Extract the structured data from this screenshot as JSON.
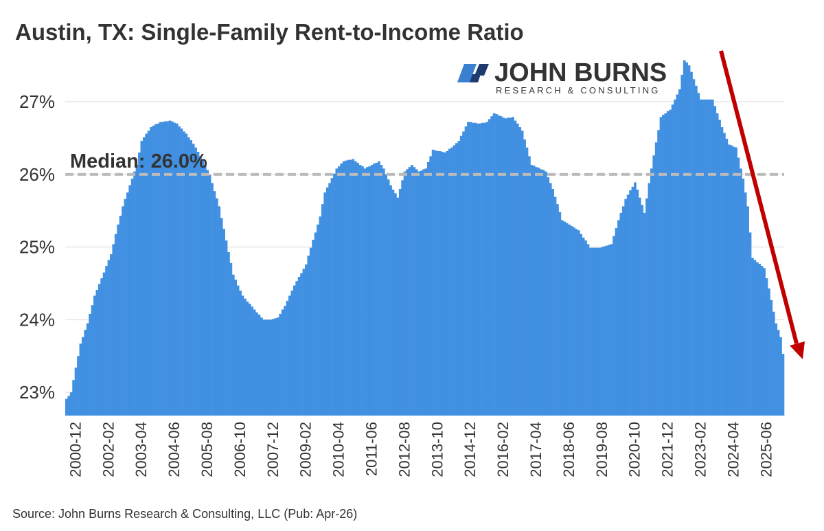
{
  "chart_data": {
    "type": "bar",
    "title": "Austin, TX: Single-Family Rent-to-Income Ratio",
    "source": "Source: John Burns Research & Consulting, LLC (Pub: Apr-26)",
    "logo": {
      "name": "JOHN BURNS",
      "tagline": "RESEARCH & CONSULTING"
    },
    "median": {
      "value": 26.0,
      "label": "Median: 26.0%"
    },
    "color": "#4190e2",
    "grid": true,
    "ylim": [
      22.68,
      27.7
    ],
    "yticks": [
      {
        "value": 23,
        "label": "23%"
      },
      {
        "value": 24,
        "label": "24%"
      },
      {
        "value": 25,
        "label": "25%"
      },
      {
        "value": 26,
        "label": "26%"
      },
      {
        "value": 27,
        "label": "27%"
      }
    ],
    "categories": [
      null,
      null,
      null,
      null,
      "2000-12",
      null,
      null,
      null,
      null,
      null,
      null,
      null,
      null,
      null,
      null,
      null,
      null,
      null,
      "2002-02",
      null,
      null,
      null,
      null,
      null,
      null,
      null,
      null,
      null,
      null,
      null,
      null,
      null,
      "2003-04",
      null,
      null,
      null,
      null,
      null,
      null,
      null,
      null,
      null,
      null,
      null,
      null,
      null,
      "2004-06",
      null,
      null,
      null,
      null,
      null,
      null,
      null,
      null,
      null,
      null,
      null,
      null,
      null,
      "2005-08",
      null,
      null,
      null,
      null,
      null,
      null,
      null,
      null,
      null,
      null,
      null,
      null,
      null,
      "2006-10",
      null,
      null,
      null,
      null,
      null,
      null,
      null,
      null,
      null,
      null,
      null,
      null,
      null,
      "2007-12",
      null,
      null,
      null,
      null,
      null,
      null,
      null,
      null,
      null,
      null,
      null,
      null,
      null,
      "2009-02",
      null,
      null,
      null,
      null,
      null,
      null,
      null,
      null,
      null,
      null,
      null,
      null,
      null,
      "2010-04",
      null,
      null,
      null,
      null,
      null,
      null,
      null,
      null,
      null,
      null,
      null,
      null,
      null,
      "2011-06",
      null,
      null,
      null,
      null,
      null,
      null,
      null,
      null,
      null,
      null,
      null,
      null,
      null,
      "2012-08",
      null,
      null,
      null,
      null,
      null,
      null,
      null,
      null,
      null,
      null,
      null,
      null,
      null,
      "2013-10",
      null,
      null,
      null,
      null,
      null,
      null,
      null,
      null,
      null,
      null,
      null,
      null,
      null,
      "2014-12",
      null,
      null,
      null,
      null,
      null,
      null,
      null,
      null,
      null,
      null,
      null,
      null,
      null,
      "2016-02",
      null,
      null,
      null,
      null,
      null,
      null,
      null,
      null,
      null,
      null,
      null,
      null,
      null,
      "2017-04",
      null,
      null,
      null,
      null,
      null,
      null,
      null,
      null,
      null,
      null,
      null,
      null,
      null,
      "2018-06",
      null,
      null,
      null,
      null,
      null,
      null,
      null,
      null,
      null,
      null,
      null,
      null,
      null,
      "2019-08",
      null,
      null,
      null,
      null,
      null,
      null,
      null,
      null,
      null,
      null,
      null,
      null,
      null,
      "2020-10",
      null,
      null,
      null,
      null,
      null,
      null,
      null,
      null,
      null,
      null,
      null,
      null,
      null,
      "2021-12",
      null,
      null,
      null,
      null,
      null,
      null,
      null,
      null,
      null,
      null,
      null,
      null,
      null,
      "2023-02",
      null,
      null,
      null,
      null,
      null,
      null,
      null,
      null,
      null,
      null,
      null,
      null,
      null,
      "2024-04",
      null,
      null,
      null,
      null,
      null,
      null,
      null,
      null,
      null,
      null,
      null,
      null,
      null,
      "2025-06",
      null,
      null,
      null,
      null,
      null,
      null,
      null
    ],
    "values": [
      22.91,
      22.95,
      23.0,
      23.17,
      23.34,
      23.5,
      23.67,
      23.76,
      23.86,
      23.95,
      24.08,
      24.2,
      24.33,
      24.41,
      24.49,
      24.57,
      24.65,
      24.74,
      24.82,
      24.9,
      25.04,
      25.18,
      25.31,
      25.43,
      25.56,
      25.66,
      25.75,
      25.85,
      25.94,
      26.04,
      26.13,
      26.3,
      26.46,
      26.51,
      26.56,
      26.6,
      26.65,
      26.67,
      26.69,
      26.7,
      26.72,
      26.72,
      26.73,
      26.73,
      26.74,
      26.73,
      26.71,
      26.7,
      26.66,
      26.63,
      26.59,
      26.56,
      26.51,
      26.47,
      26.42,
      26.37,
      26.31,
      26.25,
      26.19,
      26.13,
      26.06,
      25.99,
      25.88,
      25.77,
      25.67,
      25.56,
      25.4,
      25.25,
      25.09,
      24.93,
      24.78,
      24.62,
      24.55,
      24.47,
      24.4,
      24.33,
      24.29,
      24.25,
      24.22,
      24.18,
      24.14,
      24.1,
      24.07,
      24.03,
      24.0,
      24.0,
      24.0,
      24.0,
      24.01,
      24.02,
      24.03,
      24.08,
      24.14,
      24.19,
      24.26,
      24.33,
      24.4,
      24.47,
      24.53,
      24.59,
      24.64,
      24.7,
      24.76,
      24.88,
      24.99,
      25.1,
      25.2,
      25.31,
      25.42,
      25.59,
      25.75,
      25.82,
      25.88,
      25.95,
      26.01,
      26.08,
      26.11,
      26.15,
      26.18,
      26.19,
      26.2,
      26.2,
      26.21,
      26.18,
      26.16,
      26.13,
      26.11,
      26.08,
      26.1,
      26.11,
      26.13,
      26.15,
      26.16,
      26.18,
      26.13,
      26.08,
      26.0,
      25.93,
      25.85,
      25.79,
      25.74,
      25.68,
      25.8,
      25.92,
      26.04,
      26.07,
      26.1,
      26.13,
      26.1,
      26.07,
      26.04,
      26.05,
      26.07,
      26.08,
      26.17,
      26.25,
      26.34,
      26.33,
      26.32,
      26.32,
      26.31,
      26.3,
      26.32,
      26.35,
      26.37,
      26.4,
      26.43,
      26.46,
      26.53,
      26.59,
      26.66,
      26.72,
      26.72,
      26.71,
      26.71,
      26.7,
      26.7,
      26.71,
      26.71,
      26.72,
      26.76,
      26.8,
      26.84,
      26.83,
      26.81,
      26.8,
      26.78,
      26.77,
      26.78,
      26.78,
      26.79,
      26.74,
      26.7,
      26.65,
      26.6,
      26.48,
      26.37,
      26.25,
      26.13,
      26.12,
      26.1,
      26.09,
      26.07,
      26.06,
      26.04,
      25.96,
      25.88,
      25.8,
      25.69,
      25.59,
      25.48,
      25.37,
      25.35,
      25.33,
      25.31,
      25.29,
      25.27,
      25.25,
      25.23,
      25.18,
      25.13,
      25.09,
      25.04,
      24.99,
      24.99,
      24.99,
      24.99,
      24.99,
      25.0,
      25.01,
      25.02,
      25.03,
      25.04,
      25.15,
      25.26,
      25.37,
      25.47,
      25.56,
      25.66,
      25.72,
      25.78,
      25.83,
      25.89,
      25.79,
      25.68,
      25.58,
      25.47,
      25.67,
      25.88,
      26.08,
      26.26,
      26.44,
      26.61,
      26.79,
      26.82,
      26.84,
      26.87,
      26.89,
      26.96,
      27.03,
      27.1,
      27.17,
      27.37,
      27.57,
      27.54,
      27.5,
      27.41,
      27.31,
      27.22,
      27.12,
      27.03,
      27.03,
      27.03,
      27.03,
      27.03,
      27.03,
      26.94,
      26.84,
      26.75,
      26.65,
      26.57,
      26.49,
      26.41,
      26.4,
      26.38,
      26.37,
      26.23,
      26.08,
      25.94,
      25.75,
      25.56,
      25.2,
      24.85,
      24.82,
      24.79,
      24.77,
      24.74,
      24.71,
      24.57,
      24.43,
      24.27,
      24.11,
      23.95,
      23.86,
      23.76,
      23.53
    ]
  }
}
